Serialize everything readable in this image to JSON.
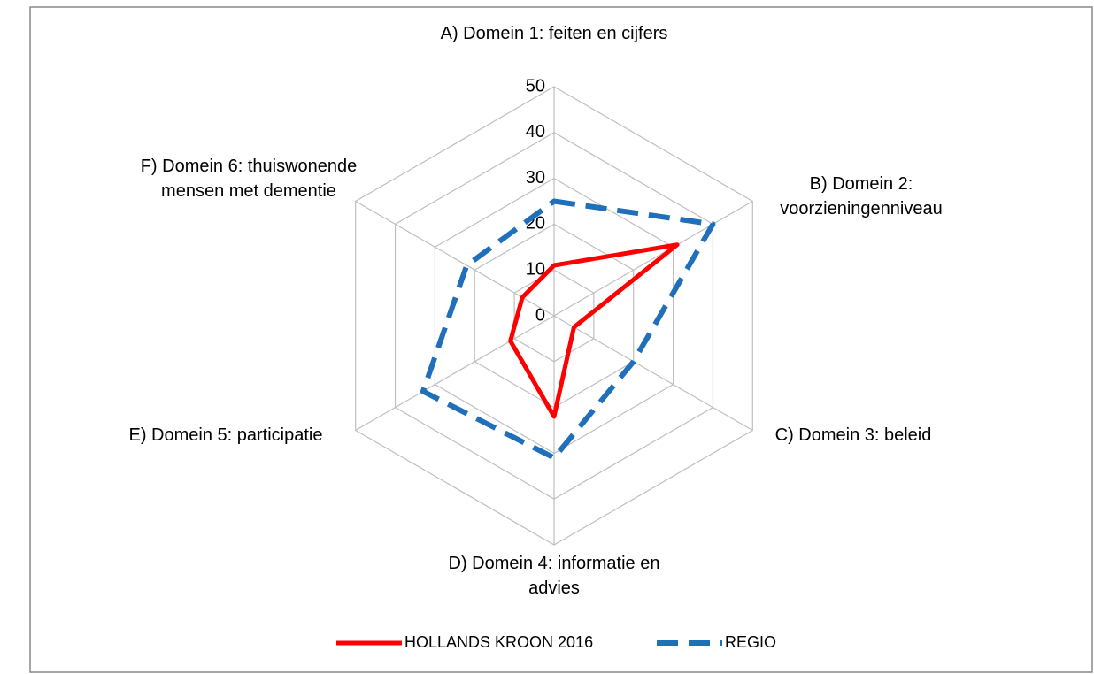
{
  "chart_data": {
    "type": "radar",
    "categories": [
      "A) Domein 1: feiten en cijfers",
      "B) Domein 2: voorzieningenniveau",
      "C) Domein 3: beleid",
      "D) Domein 4: informatie en advies",
      "E) Domein 5: participatie",
      "F) Domein 6: thuiswonende mensen met dementie"
    ],
    "series": [
      {
        "name": "HOLLANDS KROON 2016",
        "color": "#ff0000",
        "dash": false,
        "values": [
          11,
          31,
          5,
          22,
          11,
          8
        ]
      },
      {
        "name": "REGIO",
        "color": "#1f6fba",
        "dash": true,
        "values": [
          25,
          40,
          20,
          31,
          33,
          22
        ]
      }
    ],
    "ylim": [
      0,
      50
    ],
    "yticks": [
      0,
      10,
      20,
      30,
      40,
      50
    ],
    "grid": true,
    "legend": "bottom"
  }
}
